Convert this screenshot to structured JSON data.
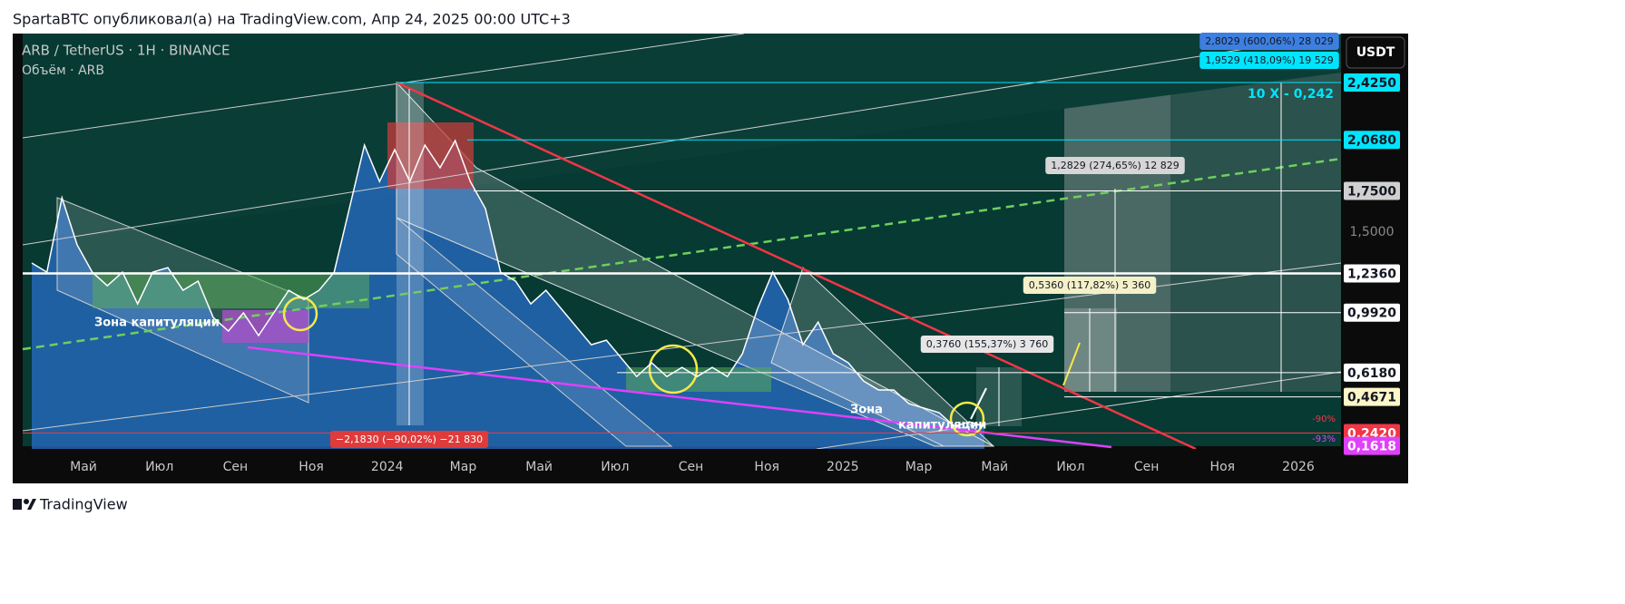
{
  "page_header": "SpartaBTC опубликовал(а) на TradingView.com, Апр 24, 2025 00:00 UTC+3",
  "footer": "TradingView",
  "chart_data": {
    "type": "line",
    "title": "ARB / TetherUS · 1H · BINANCE",
    "subtitle": "Объём · ARB",
    "currency": "USDT",
    "x_axis_labels": [
      "Май",
      "Июл",
      "Сен",
      "Ноя",
      "2024",
      "Мар",
      "Май",
      "Июл",
      "Сен",
      "Ноя",
      "2025",
      "Мар",
      "Май",
      "Июл",
      "Сен",
      "Ноя",
      "2026"
    ],
    "ylim": [
      0.143,
      2.73
    ],
    "yticks": [
      {
        "value": 2.425,
        "label": "2,4250",
        "color": "#00e5ff"
      },
      {
        "value": 2.068,
        "label": "2,0680",
        "color": "#00e5ff"
      },
      {
        "value": 1.75,
        "label": "1,7500",
        "color": "#d0d0d0"
      },
      {
        "value": 1.5,
        "label": "1,5000"
      },
      {
        "value": 1.236,
        "label": "1,2360",
        "color": "#ffffff"
      },
      {
        "value": 0.992,
        "label": "0,9920",
        "color": "#ffffff"
      },
      {
        "value": 0.618,
        "label": "0,6180",
        "color": "#ffffff"
      },
      {
        "value": 0.4671,
        "label": "0,4671",
        "color": "#fff6c8"
      },
      {
        "value": 0.242,
        "label": "0,2420",
        "color": "#f23645"
      },
      {
        "value": 0.1618,
        "label": "0,1618",
        "color": "#e040fb"
      }
    ],
    "series": [
      {
        "name": "ARB",
        "color": "#ffffff",
        "values": [
          1.301,
          1.244,
          1.707,
          1.414,
          1.244,
          1.159,
          1.244,
          1.046,
          1.244,
          1.272,
          1.131,
          1.188,
          0.962,
          0.877,
          0.99,
          0.849,
          0.99,
          1.131,
          1.074,
          1.131,
          1.244,
          1.64,
          2.035,
          1.809,
          2.007,
          1.809,
          2.035,
          1.894,
          2.063,
          1.809,
          1.64,
          1.244,
          1.188,
          1.046,
          1.131,
          1.018,
          0.905,
          0.792,
          0.82,
          0.707,
          0.594,
          0.679,
          0.594,
          0.651,
          0.594,
          0.651,
          0.594,
          0.736,
          1.018,
          1.244,
          1.074,
          0.792,
          0.933,
          0.736,
          0.679,
          0.566,
          0.51,
          0.51,
          0.425,
          0.397,
          0.369,
          0.284,
          0.312,
          0.284
        ]
      }
    ],
    "annotations": [
      "Зона капитуляции",
      "Зона",
      "капитуляции",
      "10 X - 0,242",
      "1,2829 (274,65%) 12 829",
      "0,5360 (117,82%) 5 360",
      "0,3760 (155,37%) 3 760",
      "−2,1830 (−90,02%) −21 830",
      "-90%",
      "-93%",
      "2,8029 (600,06%) 28 029",
      "1,9529 (418,09%) 19 529"
    ]
  }
}
